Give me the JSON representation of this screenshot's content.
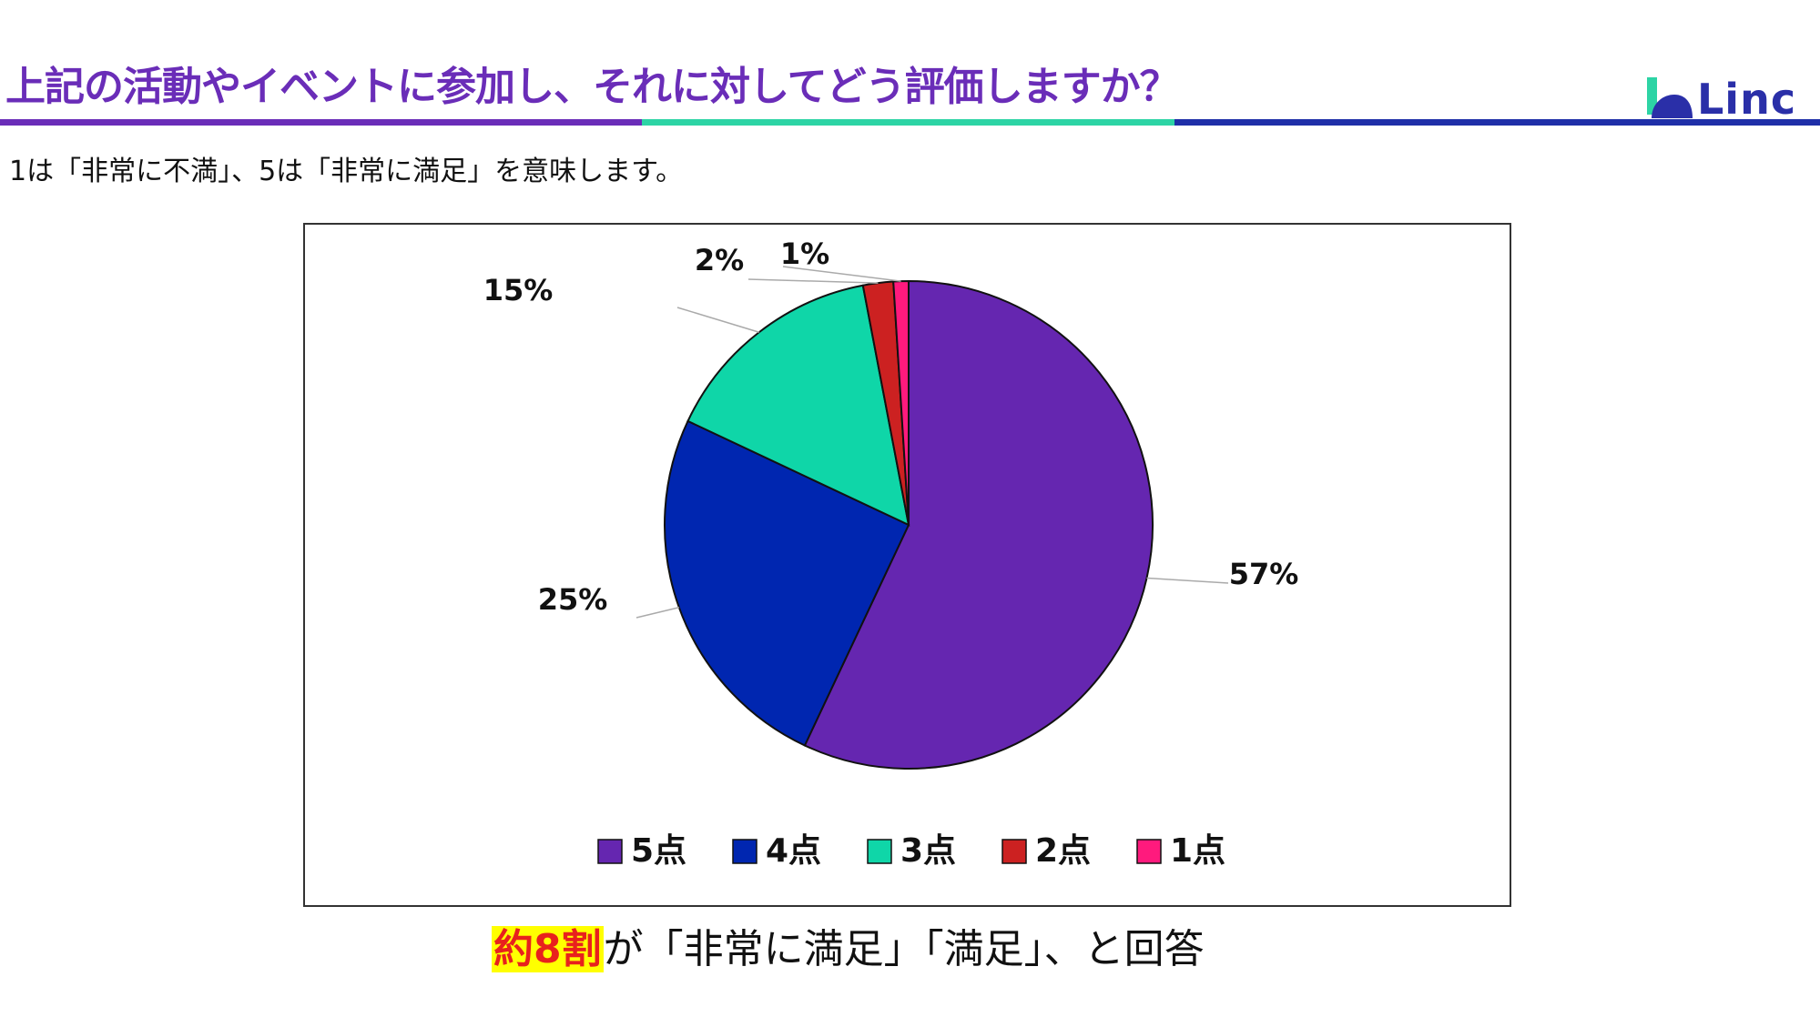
{
  "page": {
    "title": "上記の活動やイベントに参加し、それに対してどう評価しますか？",
    "subtitle": "1は「非常に不満」、5は「非常に満足」を意味します。",
    "logo_text": "Linc",
    "conclusion_highlight": "約8割",
    "conclusion_rest": "が「非常に満足」「満足」、と回答"
  },
  "colors": {
    "title": "#6a2db8",
    "accent_green": "#2dd4a5",
    "accent_blue": "#1f2fa8",
    "highlight_bg": "#ffff00",
    "highlight_text": "#e8211d"
  },
  "chart_data": {
    "type": "pie",
    "title": "",
    "legend_position": "bottom",
    "categories": [
      "5点",
      "4点",
      "3点",
      "2点",
      "1点"
    ],
    "values": [
      57,
      25,
      15,
      2,
      1
    ],
    "labels": [
      "57%",
      "25%",
      "15%",
      "2%",
      "1%"
    ],
    "colors": [
      "#6526b0",
      "#0026b0",
      "#0fd6a8",
      "#cc2121",
      "#ff1a7d"
    ],
    "start_angle": "12 o'clock",
    "direction": "clockwise"
  }
}
